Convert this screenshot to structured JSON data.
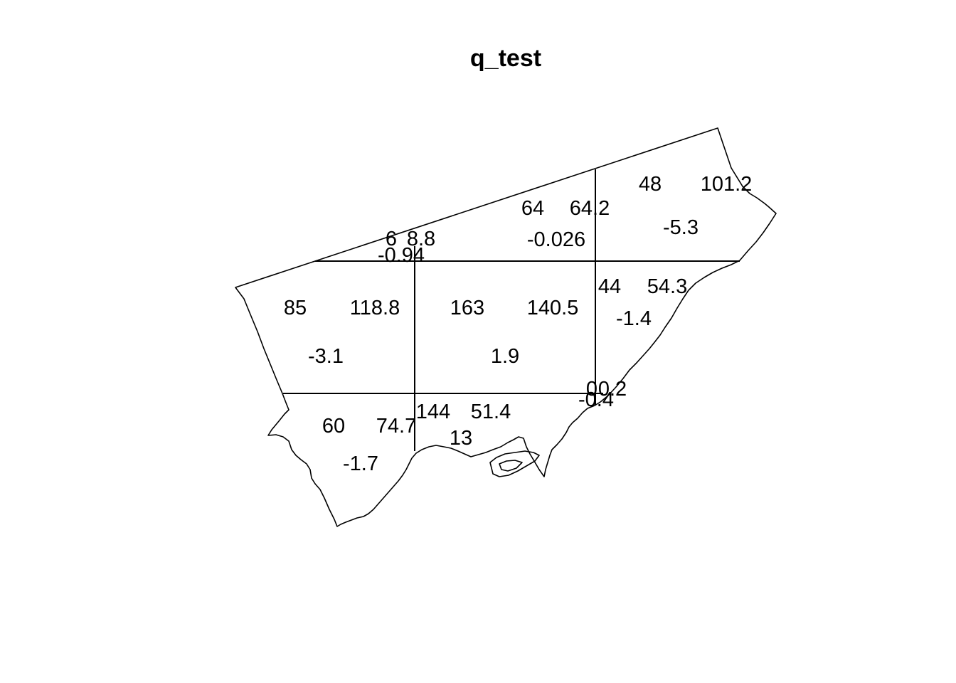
{
  "title": "q_test",
  "colors": {
    "background": "#ffffff",
    "ink": "#000000"
  },
  "cells": [
    {
      "id": "r0c1",
      "values": [
        "6",
        "8.8",
        "-0.94"
      ]
    },
    {
      "id": "r0c2",
      "values": [
        "64",
        "64.2",
        "-0.026"
      ]
    },
    {
      "id": "r0c3",
      "values": [
        "48",
        "101.2",
        "-5.3"
      ]
    },
    {
      "id": "r1c0",
      "values": [
        "85",
        "118.8",
        "-3.1"
      ]
    },
    {
      "id": "r1c1",
      "values": [
        "163",
        "140.5",
        "1.9"
      ]
    },
    {
      "id": "r1c2",
      "values": [
        "44",
        "54.3",
        "-1.4"
      ]
    },
    {
      "id": "r2c0",
      "values": [
        "60",
        "74.7",
        "-1.7"
      ]
    },
    {
      "id": "r2c1",
      "values": [
        "144",
        "51.4",
        "13"
      ]
    },
    {
      "id": "r2c2",
      "values": [
        "0",
        "0.2",
        "-0.4"
      ]
    }
  ]
}
